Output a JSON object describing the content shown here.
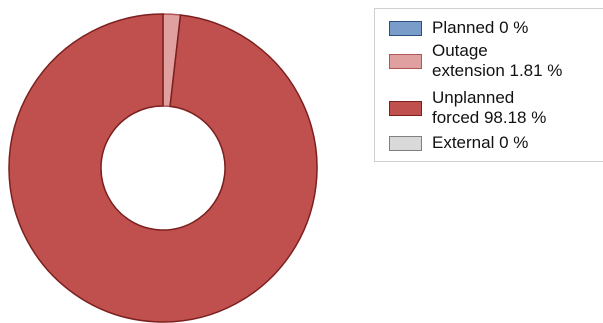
{
  "chart_data": {
    "type": "pie",
    "style": "donut",
    "categories": [
      "Planned",
      "Outage extension",
      "Unplanned forced",
      "External"
    ],
    "values": [
      0,
      1.81,
      98.18,
      0
    ],
    "unit": "%",
    "colors": [
      "#7a9cc8",
      "#e0a0a0",
      "#c0504d",
      "#d9d9d9"
    ],
    "border_colors": [
      "#2e4f82",
      "#b05656",
      "#7b1f1f",
      "#808080"
    ],
    "legend_position": "right",
    "legend": [
      {
        "lines": [
          "Planned 0 %"
        ]
      },
      {
        "lines": [
          "Outage",
          "extension 1.81 %"
        ]
      },
      {
        "lines": [
          "Unplanned",
          "forced 98.18 %"
        ]
      },
      {
        "lines": [
          "External 0 %"
        ]
      }
    ]
  }
}
